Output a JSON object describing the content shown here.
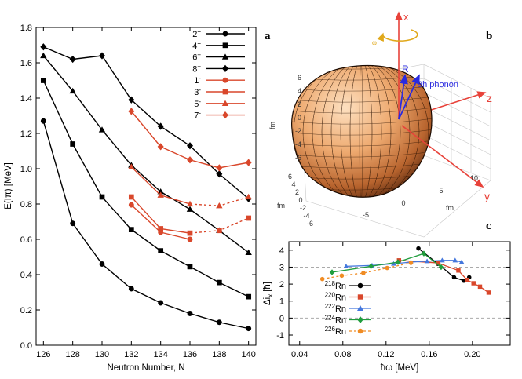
{
  "chart_data": [
    {
      "type": "line",
      "panel_label": "a",
      "xlabel": "Neutron Number, N",
      "ylabel": "E(Iπ) [MeV]",
      "xlim": [
        125.5,
        140.5
      ],
      "ylim": [
        0,
        1.8
      ],
      "xticks": [
        126,
        128,
        130,
        132,
        134,
        136,
        138,
        140
      ],
      "yticks": [
        0,
        0.2,
        0.4,
        0.6,
        0.8,
        1.0,
        1.2,
        1.4,
        1.6,
        1.8
      ],
      "ytick_labels": [
        "0.0",
        "0.2",
        "0.4",
        "0.6",
        "0.8",
        "1.0",
        "1.2",
        "1.4",
        "1.6",
        "1.8"
      ],
      "legend_position": "top-right",
      "series": [
        {
          "name": "2+",
          "color": "#000000",
          "marker": "circle",
          "points": [
            [
              126,
              1.27
            ],
            [
              128,
              0.69
            ],
            [
              130,
              0.46
            ],
            [
              132,
              0.32
            ],
            [
              134,
              0.24
            ],
            [
              136,
              0.18
            ],
            [
              138,
              0.13
            ],
            [
              140,
              0.095
            ]
          ]
        },
        {
          "name": "4+",
          "color": "#000000",
          "marker": "square",
          "points": [
            [
              126,
              1.5
            ],
            [
              128,
              1.14
            ],
            [
              130,
              0.84
            ],
            [
              132,
              0.655
            ],
            [
              134,
              0.535
            ],
            [
              136,
              0.445
            ],
            [
              138,
              0.355
            ],
            [
              140,
              0.275
            ]
          ]
        },
        {
          "name": "6+",
          "color": "#000000",
          "marker": "triangle",
          "points": [
            [
              126,
              1.64
            ],
            [
              128,
              1.44
            ],
            [
              130,
              1.22
            ],
            [
              132,
              1.02
            ],
            [
              134,
              0.87
            ],
            [
              136,
              0.77
            ],
            [
              138,
              0.65
            ],
            [
              140,
              0.525
            ]
          ]
        },
        {
          "name": "8+",
          "color": "#000000",
          "marker": "diamond",
          "points": [
            [
              126,
              1.69
            ],
            [
              128,
              1.62
            ],
            [
              130,
              1.64
            ],
            [
              132,
              1.39
            ],
            [
              134,
              1.24
            ],
            [
              136,
              1.13
            ],
            [
              138,
              0.97
            ],
            [
              140,
              0.83
            ]
          ]
        },
        {
          "name": "1-",
          "color": "#d9472b",
          "marker": "circle",
          "points": [
            [
              132,
              0.795
            ],
            [
              134,
              0.64
            ],
            [
              136,
              0.6
            ]
          ]
        },
        {
          "name": "3-",
          "color": "#d9472b",
          "marker": "square",
          "points": [
            [
              132,
              0.84
            ],
            [
              134,
              0.66
            ],
            [
              136,
              0.635
            ],
            [
              138,
              0.65
            ],
            [
              140,
              0.72
            ]
          ],
          "dashed_from": 3
        },
        {
          "name": "5-",
          "color": "#d9472b",
          "marker": "triangle",
          "points": [
            [
              132,
              1.01
            ],
            [
              134,
              0.85
            ],
            [
              136,
              0.8
            ],
            [
              138,
              0.79
            ],
            [
              140,
              0.84
            ]
          ],
          "dashed_from": 3
        },
        {
          "name": "7-",
          "color": "#d9472b",
          "marker": "diamond",
          "points": [
            [
              132,
              1.325
            ],
            [
              134,
              1.125
            ],
            [
              136,
              1.05
            ],
            [
              138,
              1.005
            ],
            [
              140,
              1.035
            ]
          ]
        }
      ]
    },
    {
      "type": "line",
      "panel_label": "c",
      "xlabel": "ħω [MeV]",
      "ylabel": "Δi",
      "ylabel_sub": "x",
      "ylabel_unit": "[ħ]",
      "xlim": [
        0.03,
        0.235
      ],
      "ylim": [
        -1.6,
        4.5
      ],
      "xticks": [
        0.04,
        0.08,
        0.12,
        0.16,
        0.2
      ],
      "xtick_labels": [
        "0.04",
        "0.08",
        "0.12",
        "0.16",
        "0.20"
      ],
      "yticks": [
        -1,
        0,
        1,
        2,
        3,
        4
      ],
      "ytick_labels": [
        "-1",
        "0",
        "1",
        "2",
        "3",
        "4"
      ],
      "reference_lines": [
        0,
        3
      ],
      "legend_position": "left",
      "series": [
        {
          "name": "218Rn",
          "mass": "218",
          "element": "Rn",
          "color": "#000000",
          "marker": "circle",
          "points": [
            [
              0.15,
              4.1
            ],
            [
              0.168,
              3.2
            ],
            [
              0.183,
              2.4
            ],
            [
              0.192,
              2.2
            ],
            [
              0.197,
              2.4
            ]
          ]
        },
        {
          "name": "220Rn",
          "mass": "220",
          "element": "Rn",
          "color": "#d9472b",
          "marker": "square",
          "points": [
            [
              0.132,
              3.4
            ],
            [
              0.168,
              3.25
            ],
            [
              0.187,
              2.8
            ],
            [
              0.195,
              2.25
            ],
            [
              0.201,
              2.05
            ],
            [
              0.207,
              1.85
            ],
            [
              0.215,
              1.5
            ]
          ]
        },
        {
          "name": "222Rn",
          "mass": "222",
          "element": "Rn",
          "color": "#4477dd",
          "marker": "triangle",
          "points": [
            [
              0.083,
              3.05
            ],
            [
              0.107,
              3.1
            ],
            [
              0.127,
              3.2
            ],
            [
              0.143,
              3.3
            ],
            [
              0.158,
              3.35
            ],
            [
              0.172,
              3.4
            ],
            [
              0.184,
              3.4
            ],
            [
              0.19,
              3.3
            ]
          ]
        },
        {
          "name": "224Rn",
          "mass": "224",
          "element": "Rn",
          "color": "#1f9d3d",
          "marker": "diamond",
          "points": [
            [
              0.07,
              2.7
            ],
            [
              0.106,
              3.05
            ],
            [
              0.131,
              3.3
            ],
            [
              0.155,
              3.8
            ],
            [
              0.171,
              3.0
            ]
          ]
        },
        {
          "name": "226Rn",
          "mass": "226",
          "element": "Rn",
          "color": "#f08c24",
          "marker": "circle",
          "points": [
            [
              0.061,
              2.3
            ],
            [
              0.079,
              2.5
            ],
            [
              0.099,
              2.65
            ],
            [
              0.121,
              2.95
            ],
            [
              0.143,
              3.25
            ]
          ],
          "dashed": true
        }
      ]
    }
  ],
  "panel_b": {
    "panel_label": "b",
    "axis_x_label": "x",
    "axis_y_label": "y",
    "axis_z_label": "z",
    "vector_R_label": "R",
    "vector_phonon_label": "3h phonon",
    "omega_label": "ω",
    "fm_label": "fm",
    "vertical_ticks": [
      "6",
      "4",
      "2",
      "0",
      "-2",
      "-4",
      "-6"
    ],
    "depth_ticks": [
      "6",
      "4",
      "2",
      "0",
      "-2",
      "-4",
      "-6"
    ],
    "right_ticks": [
      "-5",
      "0",
      "5",
      "10"
    ],
    "colors": {
      "arrow_red": "#e8423a",
      "arrow_blue": "#2a2adf",
      "rotation": "#e0a81a",
      "surface": "#e8a468"
    }
  }
}
